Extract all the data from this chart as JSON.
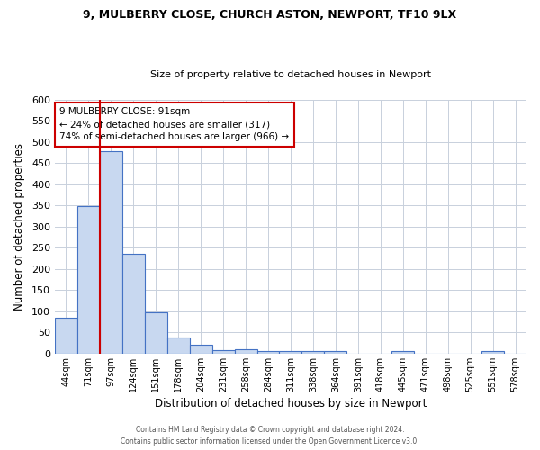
{
  "title1": "9, MULBERRY CLOSE, CHURCH ASTON, NEWPORT, TF10 9LX",
  "title2": "Size of property relative to detached houses in Newport",
  "xlabel": "Distribution of detached houses by size in Newport",
  "ylabel": "Number of detached properties",
  "categories": [
    "44sqm",
    "71sqm",
    "97sqm",
    "124sqm",
    "151sqm",
    "178sqm",
    "204sqm",
    "231sqm",
    "258sqm",
    "284sqm",
    "311sqm",
    "338sqm",
    "364sqm",
    "391sqm",
    "418sqm",
    "445sqm",
    "471sqm",
    "498sqm",
    "525sqm",
    "551sqm",
    "578sqm"
  ],
  "values": [
    85,
    348,
    478,
    236,
    97,
    37,
    20,
    9,
    10,
    6,
    5,
    5,
    6,
    0,
    0,
    5,
    0,
    0,
    0,
    5,
    0
  ],
  "bar_color": "#c8d8f0",
  "bar_edge_color": "#4472c4",
  "ylim": [
    0,
    600
  ],
  "yticks": [
    0,
    50,
    100,
    150,
    200,
    250,
    300,
    350,
    400,
    450,
    500,
    550,
    600
  ],
  "property_line_color": "#cc0000",
  "annotation_title": "9 MULBERRY CLOSE: 91sqm",
  "annotation_line1": "← 24% of detached houses are smaller (317)",
  "annotation_line2": "74% of semi-detached houses are larger (966) →",
  "annotation_box_color": "#ffffff",
  "annotation_box_edge": "#cc0000",
  "footer1": "Contains HM Land Registry data © Crown copyright and database right 2024.",
  "footer2": "Contains public sector information licensed under the Open Government Licence v3.0.",
  "bg_color": "#ffffff",
  "grid_color": "#c8d0dc"
}
